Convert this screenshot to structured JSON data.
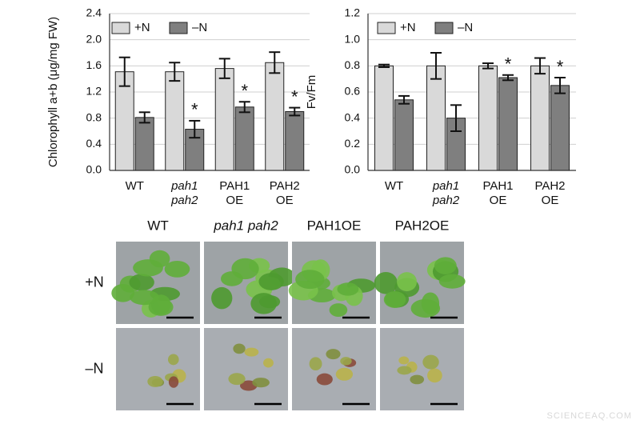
{
  "chart_data": [
    {
      "type": "bar",
      "ylabel": "Chlorophyll a+b (μg/mg FW)",
      "categories": [
        [
          "WT"
        ],
        [
          "pah1",
          "pah2"
        ],
        [
          "PAH1",
          "OE"
        ],
        [
          "PAH2",
          "OE"
        ]
      ],
      "series": [
        {
          "name": "+N",
          "color": "#d9d9d9",
          "values": [
            1.51,
            1.51,
            1.56,
            1.65
          ],
          "errors": [
            0.22,
            0.14,
            0.15,
            0.16
          ],
          "labels": [
            null,
            null,
            null,
            null
          ]
        },
        {
          "name": "–N",
          "color": "#7f7f7f",
          "values": [
            0.81,
            0.63,
            0.97,
            0.9
          ],
          "errors": [
            0.08,
            0.13,
            0.08,
            0.06
          ],
          "labels": [
            null,
            "*",
            "*",
            "*"
          ]
        }
      ],
      "ylim": [
        0,
        2.4
      ],
      "yticks": [
        {
          "value": 0,
          "label": "0.0"
        },
        0.4,
        0.8,
        1.2,
        1.6,
        {
          "value": 2,
          "label": "2.0"
        },
        2.4
      ],
      "grid": true,
      "legend": "top-left"
    },
    {
      "type": "bar",
      "ylabel": "Fv/Fm",
      "categories": [
        [
          "WT"
        ],
        [
          "pah1",
          "pah2"
        ],
        [
          "PAH1",
          "OE"
        ],
        [
          "PAH2",
          "OE"
        ]
      ],
      "series": [
        {
          "name": "+N",
          "color": "#d9d9d9",
          "values": [
            0.8,
            0.8,
            0.8,
            0.8
          ],
          "errors": [
            0.01,
            0.1,
            0.02,
            0.06
          ],
          "labels": [
            null,
            null,
            null,
            null
          ]
        },
        {
          "name": "–N",
          "color": "#7f7f7f",
          "values": [
            0.54,
            0.4,
            0.71,
            0.65
          ],
          "errors": [
            0.03,
            0.1,
            0.02,
            0.06
          ],
          "labels": [
            null,
            null,
            "*",
            "*"
          ]
        }
      ],
      "ylim": [
        0,
        1.2
      ],
      "yticks": [
        {
          "value": 0,
          "label": "0.0"
        },
        0.2,
        0.4,
        0.6,
        0.8,
        {
          "value": 1,
          "label": "1.0"
        },
        1.2
      ],
      "grid": true,
      "legend": "top-left"
    }
  ],
  "photo_panel": {
    "columns": [
      "WT",
      "pah1 pah2",
      "PAH1OE",
      "PAH2OE"
    ],
    "rows": [
      "+N",
      "–N"
    ]
  },
  "watermark": "SCIENCEAQ.COM"
}
